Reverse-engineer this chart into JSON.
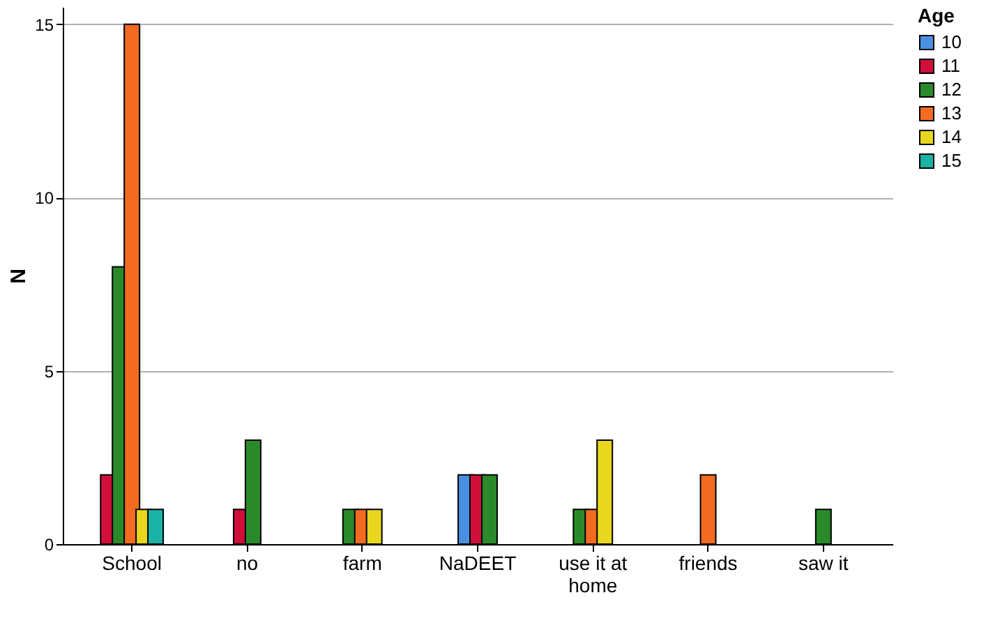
{
  "chart_data": {
    "type": "bar",
    "ylabel": "N",
    "legend_title": "Age",
    "categories": [
      "School",
      "no",
      "farm",
      "NaDEET",
      "use it at home",
      "friends",
      "saw it"
    ],
    "series": [
      {
        "name": "10",
        "color": "#4a90e2",
        "values": [
          null,
          null,
          null,
          2,
          null,
          null,
          null
        ]
      },
      {
        "name": "11",
        "color": "#d0103a",
        "values": [
          2,
          1,
          null,
          2,
          null,
          null,
          null
        ]
      },
      {
        "name": "12",
        "color": "#2a8a2a",
        "values": [
          8,
          3,
          1,
          2,
          1,
          null,
          1
        ]
      },
      {
        "name": "13",
        "color": "#f26b21",
        "values": [
          15,
          null,
          1,
          null,
          1,
          2,
          null
        ]
      },
      {
        "name": "14",
        "color": "#e8d71e",
        "values": [
          1,
          null,
          1,
          null,
          3,
          null,
          null
        ]
      },
      {
        "name": "15",
        "color": "#1ab3a6",
        "values": [
          1,
          null,
          null,
          null,
          null,
          null,
          null
        ]
      }
    ],
    "ylim": [
      0,
      15.5
    ],
    "yticks": [
      0,
      5,
      10,
      15
    ],
    "grid": "y",
    "legend": "top right"
  }
}
